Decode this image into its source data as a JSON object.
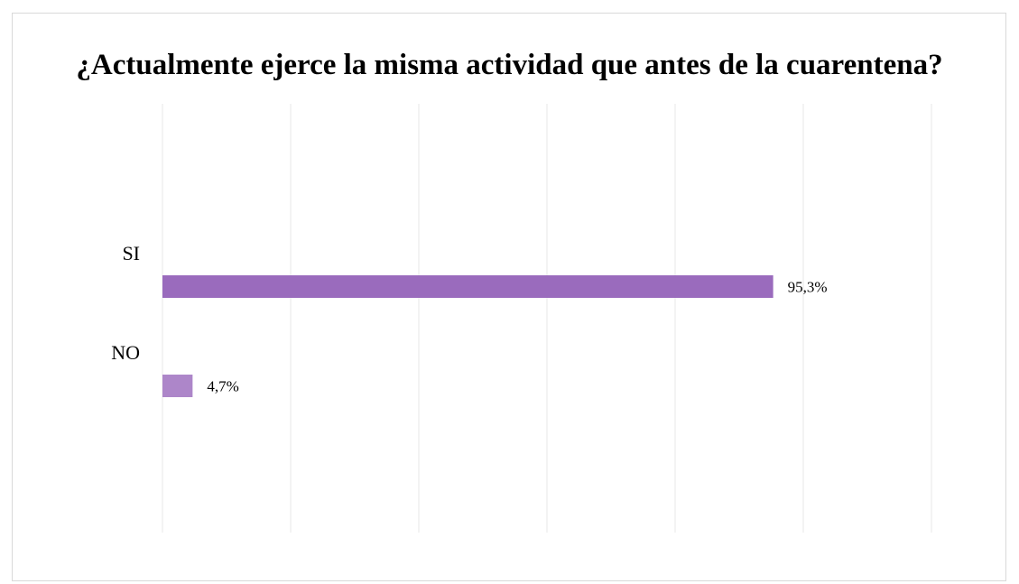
{
  "chart_data": {
    "type": "bar",
    "orientation": "horizontal",
    "title": "¿Actualmente ejerce la misma actividad que antes de la cuarentena?",
    "categories": [
      "SI",
      "NO"
    ],
    "values": [
      95.3,
      4.7
    ],
    "data_labels": [
      "95,3%",
      "4,7%"
    ],
    "xlim": [
      0,
      120
    ],
    "grid": true,
    "legend": "none",
    "colors": [
      "#9a6bbd",
      "#ad86c9"
    ],
    "gridline_color": "#e7e7e7"
  }
}
